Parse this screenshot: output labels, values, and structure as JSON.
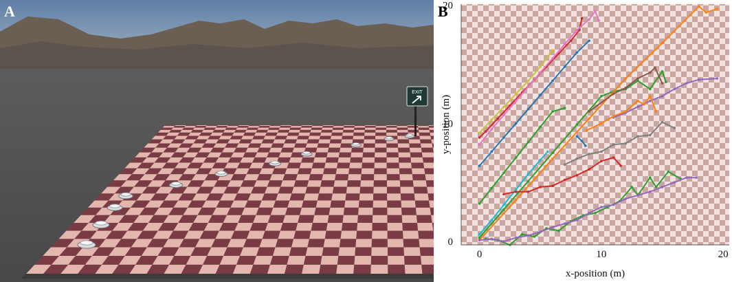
{
  "panels": {
    "a_label": "A",
    "b_label": "B"
  },
  "scene": {
    "exit_sign_text": "EXIT",
    "exit_arrow_icon": "arrow-up-right-icon",
    "colors": {
      "sky_top": "#5f7fa6",
      "sky_bottom": "#a9b7c6",
      "ground": "#5a5a5a",
      "tile_dark": "#7a3b45",
      "tile_light": "#e4b7ae",
      "sign": "#1f3a34"
    }
  },
  "chart_data": {
    "type": "line",
    "title": "",
    "xlabel": "x-position (m)",
    "ylabel": "y-position (m)",
    "xlim": [
      -1.5,
      20.5
    ],
    "ylim": [
      -0.3,
      20.1
    ],
    "xticks": [
      0,
      10,
      20
    ],
    "yticks": [
      0,
      10,
      20
    ],
    "grid": false,
    "legend": "none",
    "background": "checkerboard",
    "series": [
      {
        "color": "#c9c23a",
        "points": [
          [
            0,
            9.2
          ],
          [
            1,
            10.3
          ],
          [
            2,
            11.4
          ],
          [
            3,
            12.5
          ],
          [
            4,
            13.6
          ],
          [
            5,
            14.8
          ],
          [
            5.8,
            15.9
          ],
          [
            6,
            16.2
          ]
        ]
      },
      {
        "color": "#d62728",
        "points": [
          [
            0,
            8.8
          ],
          [
            0.5,
            9.3
          ],
          [
            1.5,
            10.4
          ],
          [
            2.5,
            11.5
          ],
          [
            3.5,
            12.6
          ],
          [
            4.5,
            13.7
          ],
          [
            5.5,
            14.8
          ],
          [
            6.5,
            15.9
          ],
          [
            7.5,
            17
          ],
          [
            8.2,
            17.9
          ],
          [
            8.4,
            18.9
          ]
        ]
      },
      {
        "color": "#e377c2",
        "points": [
          [
            0,
            8.2
          ],
          [
            1,
            9.5
          ],
          [
            2,
            10.7
          ],
          [
            3,
            11.9
          ],
          [
            4,
            13.1
          ],
          [
            5,
            14.3
          ],
          [
            6,
            15.5
          ],
          [
            7,
            16.7
          ],
          [
            8,
            17.9
          ],
          [
            9,
            18.8
          ],
          [
            9.5,
            19.5
          ],
          [
            9.8,
            18.7
          ]
        ]
      },
      {
        "color": "#1f77b4",
        "points": [
          [
            0,
            6.4
          ],
          [
            1,
            7.6
          ],
          [
            2,
            8.8
          ],
          [
            3,
            10
          ],
          [
            4,
            11.2
          ],
          [
            5,
            12.4
          ],
          [
            6,
            13.6
          ],
          [
            7,
            14.8
          ],
          [
            8,
            16
          ],
          [
            9,
            17
          ]
        ]
      },
      {
        "color": "#2ca02c",
        "points": [
          [
            0,
            3.2
          ],
          [
            1,
            4.5
          ],
          [
            2,
            5.8
          ],
          [
            3,
            7.1
          ],
          [
            4,
            8.4
          ],
          [
            5,
            9.7
          ],
          [
            6,
            11
          ],
          [
            7,
            11.3
          ]
        ]
      },
      {
        "color": "#17becf",
        "points": [
          [
            0,
            0.6
          ],
          [
            1,
            1.8
          ],
          [
            2,
            3.1
          ],
          [
            3,
            4.4
          ],
          [
            4,
            5.7
          ],
          [
            5,
            6.9
          ],
          [
            5.6,
            7.6
          ]
        ]
      },
      {
        "color": "#2ca02c",
        "points": [
          [
            0,
            0.3
          ],
          [
            2,
            2.7
          ],
          [
            4,
            5.1
          ],
          [
            6,
            7.5
          ],
          [
            8,
            9.9
          ],
          [
            10,
            12.3
          ],
          [
            11,
            12.7
          ],
          [
            12,
            12.9
          ],
          [
            13,
            13.6
          ],
          [
            14,
            12.9
          ],
          [
            15,
            14.4
          ],
          [
            15.3,
            13.5
          ]
        ]
      },
      {
        "color": "#ff7f0e",
        "points": [
          [
            0,
            0.1
          ],
          [
            3,
            3.5
          ],
          [
            6,
            7
          ],
          [
            9,
            10.4
          ],
          [
            12,
            13.8
          ],
          [
            15,
            16.8
          ],
          [
            18,
            19.9
          ],
          [
            18.6,
            19.4
          ],
          [
            19.5,
            19.7
          ]
        ]
      },
      {
        "color": "#8c564b",
        "points": [
          [
            9,
            11
          ],
          [
            11,
            12.5
          ],
          [
            12,
            13
          ],
          [
            13,
            13.8
          ],
          [
            14,
            14.3
          ],
          [
            14.4,
            14.7
          ],
          [
            15,
            13.4
          ]
        ]
      },
      {
        "color": "#9467bd",
        "points": [
          [
            11,
            10.5
          ],
          [
            12,
            10.9
          ],
          [
            13,
            11.4
          ],
          [
            14,
            11.9
          ],
          [
            15,
            12.3
          ],
          [
            16,
            12.9
          ],
          [
            17,
            13.4
          ],
          [
            18,
            13.7
          ],
          [
            19.5,
            13.8
          ]
        ]
      },
      {
        "color": "#ff7f0e",
        "points": [
          [
            8.8,
            9.4
          ],
          [
            10,
            10
          ],
          [
            11,
            10.6
          ],
          [
            12,
            11
          ],
          [
            13,
            11.9
          ],
          [
            13.5,
            11.6
          ],
          [
            14,
            12.3
          ],
          [
            14.5,
            11
          ]
        ]
      },
      {
        "color": "#7f7f7f",
        "points": [
          [
            7,
            6.5
          ],
          [
            8,
            7
          ],
          [
            9,
            7.4
          ],
          [
            10,
            7.6
          ],
          [
            11,
            8.2
          ],
          [
            12,
            8.3
          ],
          [
            13,
            8.9
          ],
          [
            14,
            9
          ],
          [
            15,
            10.1
          ],
          [
            16,
            9.6
          ]
        ]
      },
      {
        "color": "#d62728",
        "points": [
          [
            2,
            4
          ],
          [
            3,
            4.2
          ],
          [
            4,
            4.2
          ],
          [
            5,
            4.6
          ],
          [
            6,
            4.7
          ],
          [
            7,
            5.2
          ],
          [
            8,
            5.6
          ],
          [
            9,
            6.1
          ],
          [
            10,
            6.8
          ],
          [
            11,
            7.1
          ],
          [
            11.6,
            6.4
          ]
        ]
      },
      {
        "color": "#1f77b4",
        "points": [
          [
            8,
            8.9
          ],
          [
            8.4,
            8.5
          ],
          [
            8.7,
            8.1
          ]
        ]
      },
      {
        "color": "#2ca02c",
        "points": [
          [
            0.5,
            0.2
          ],
          [
            1.5,
            0.1
          ],
          [
            2.5,
            -0.3
          ],
          [
            3.5,
            0.6
          ],
          [
            4.5,
            0.4
          ],
          [
            5.5,
            1.1
          ],
          [
            6.5,
            0.9
          ],
          [
            7.5,
            1.7
          ],
          [
            8.5,
            2.2
          ],
          [
            9.5,
            2.4
          ],
          [
            10.5,
            2.9
          ],
          [
            11.5,
            3.4
          ],
          [
            12.5,
            4.6
          ],
          [
            13,
            3.9
          ],
          [
            14,
            5.4
          ],
          [
            14.5,
            4.6
          ],
          [
            15.5,
            5.9
          ],
          [
            16.5,
            5.3
          ]
        ]
      },
      {
        "color": "#9467bd",
        "points": [
          [
            0,
            0.1
          ],
          [
            1,
            0.2
          ],
          [
            2,
            0
          ],
          [
            3,
            0.3
          ],
          [
            4,
            0.5
          ],
          [
            5,
            0.8
          ],
          [
            6,
            1.2
          ],
          [
            7,
            1.5
          ],
          [
            8,
            1.8
          ],
          [
            9,
            2.4
          ],
          [
            10,
            2.9
          ],
          [
            11,
            3.1
          ],
          [
            12,
            3.6
          ],
          [
            13,
            3.9
          ],
          [
            14,
            4.2
          ],
          [
            15,
            4.6
          ],
          [
            16,
            5
          ],
          [
            17,
            5.4
          ],
          [
            17.8,
            5.4
          ]
        ]
      }
    ]
  }
}
